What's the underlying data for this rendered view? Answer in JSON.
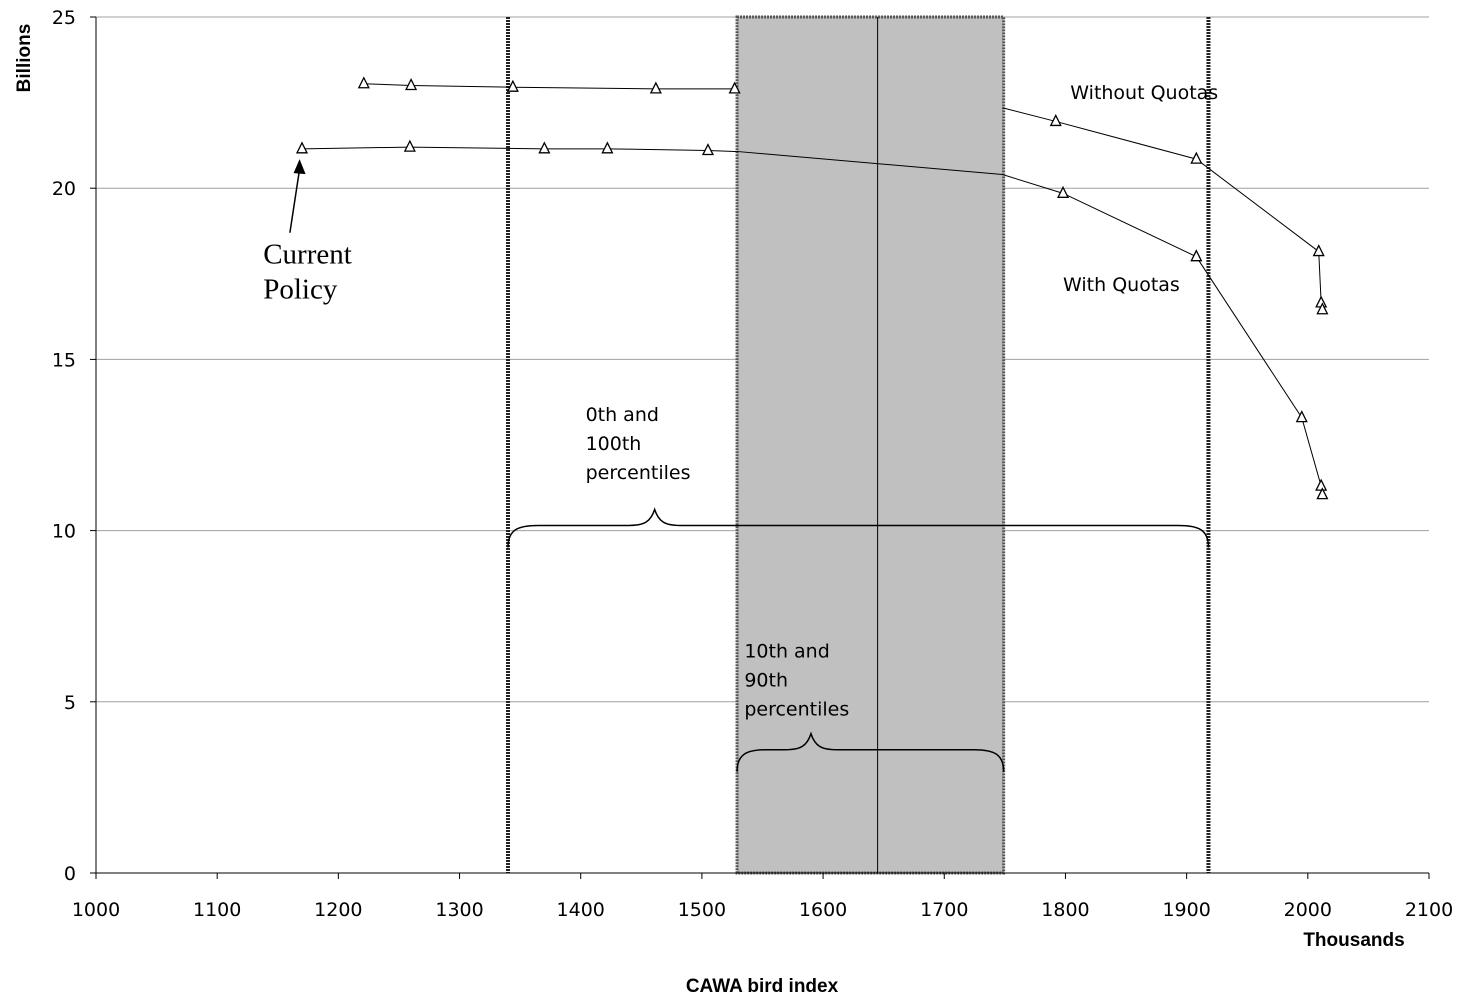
{
  "chart_data": {
    "type": "scatter",
    "title": "",
    "xlabel": "CAWA bird index",
    "x_unit_label": "Thousands",
    "ylabel": "Billions",
    "xlim": [
      1000,
      2100
    ],
    "ylim": [
      0,
      25
    ],
    "x_ticks": [
      1000,
      1100,
      1200,
      1300,
      1400,
      1500,
      1600,
      1700,
      1800,
      1900,
      2000,
      2100
    ],
    "y_ticks": [
      0,
      5,
      10,
      15,
      20,
      25
    ],
    "grid": "horizontal",
    "legend": "none",
    "series": [
      {
        "name": "Without Quotas",
        "marker": "triangle",
        "points": [
          [
            1221,
            23.05
          ],
          [
            1260,
            23.0
          ],
          [
            1344,
            22.95
          ],
          [
            1462,
            22.9
          ],
          [
            1527,
            22.9
          ],
          [
            1792,
            21.95
          ],
          [
            1908,
            20.85
          ],
          [
            2009,
            18.15
          ],
          [
            2011,
            16.65
          ],
          [
            2012,
            16.45
          ]
        ]
      },
      {
        "name": "With Quotas",
        "marker": "triangle",
        "points": [
          [
            1170,
            21.15
          ],
          [
            1259,
            21.2
          ],
          [
            1370,
            21.15
          ],
          [
            1422,
            21.15
          ],
          [
            1505,
            21.1
          ],
          [
            1798,
            19.85
          ],
          [
            1908,
            18.0
          ],
          [
            1995,
            13.3
          ],
          [
            2011,
            11.3
          ],
          [
            2012,
            11.05
          ]
        ]
      }
    ],
    "lines": {
      "without_quotas_mid": [
        [
          1527,
          22.9
        ],
        [
          1748,
          22.35
        ]
      ],
      "with_quotas_mid": [
        [
          1505,
          21.1
        ],
        [
          1530,
          21.07
        ],
        [
          1748,
          20.4
        ]
      ]
    },
    "percentile_lines": {
      "p0": 1340,
      "p100": 1918,
      "p10": 1529,
      "p90": 1749,
      "median": 1645
    },
    "shaded_band": {
      "from": 1529,
      "to": 1749,
      "color": "#c0c0c0"
    },
    "annotations": {
      "without_quotas": "Without Quotas",
      "with_quotas": "With Quotas",
      "current_policy": [
        "Current",
        "Policy"
      ],
      "outer": [
        "0th and",
        "100th",
        "percentiles"
      ],
      "inner": [
        "10th and",
        "90th",
        "percentiles"
      ]
    },
    "annotation_positions": {
      "without_quotas": [
        1804,
        22.6
      ],
      "with_quotas": [
        1798,
        17.0
      ],
      "current_policy": [
        1138,
        17.8
      ],
      "outer": [
        1404,
        13.2
      ],
      "inner": [
        1535,
        6.3
      ]
    },
    "braces": {
      "outer": {
        "from": 1340,
        "to": 1918,
        "y": 10.15,
        "tip": 1461
      },
      "inner": {
        "from": 1529,
        "to": 1749,
        "y": 3.6,
        "tip": 1590
      }
    },
    "current_policy_arrow": {
      "from": [
        1160,
        18.7
      ],
      "to": [
        1168,
        20.85
      ]
    }
  }
}
